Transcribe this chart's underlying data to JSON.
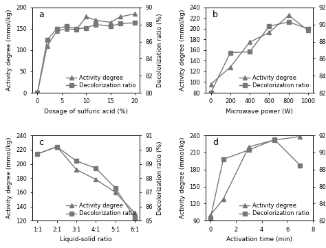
{
  "panel_a": {
    "label": "a",
    "xlabel": "Dosage of sulfuric acid (%)",
    "ylabel_left": "Activity degree (mmol/kg)",
    "ylabel_right": "Decolorization ratio (%)",
    "x": [
      0,
      2,
      4,
      6,
      8,
      10,
      12,
      15,
      17,
      20
    ],
    "activity": [
      0,
      110,
      145,
      150,
      148,
      178,
      170,
      165,
      178,
      185
    ],
    "decolor": [
      80.0,
      86.2,
      87.5,
      87.8,
      87.5,
      87.6,
      88.0,
      87.8,
      88.1,
      88.2
    ],
    "ylim_left": [
      0,
      200
    ],
    "ylim_right": [
      80,
      90
    ],
    "yticks_left": [
      0,
      50,
      100,
      150,
      200
    ],
    "yticks_right": [
      80,
      82,
      84,
      86,
      88,
      90
    ],
    "xticks": [
      0,
      5,
      10,
      15,
      20
    ],
    "xticklabels": [
      "0",
      "5",
      "10",
      "15",
      "20"
    ]
  },
  "panel_b": {
    "label": "b",
    "xlabel": "Microwave power (W)",
    "ylabel_left": "Activity degree (mmol/kg)",
    "ylabel_right": "Decolorization ratio (%)",
    "x": [
      0,
      200,
      400,
      600,
      800,
      1000
    ],
    "activity": [
      96,
      128,
      175,
      193,
      225,
      197
    ],
    "decolor": [
      82.0,
      86.7,
      86.8,
      89.8,
      90.3,
      89.5
    ],
    "ylim_left": [
      80,
      240
    ],
    "ylim_right": [
      82,
      92
    ],
    "yticks_left": [
      80,
      100,
      120,
      140,
      160,
      180,
      200,
      220,
      240
    ],
    "yticks_right": [
      82,
      84,
      86,
      88,
      90,
      92
    ],
    "xticks": [
      0,
      200,
      400,
      600,
      800,
      1000
    ],
    "xticklabels": [
      "0",
      "200",
      "400",
      "600",
      "800",
      "1000"
    ]
  },
  "panel_c": {
    "label": "c",
    "xlabel": "Liquid-solid ratio",
    "ylabel_left": "Activity degree (mmol/kg)",
    "ylabel_right": "Decolorization ratio (%)",
    "x": [
      0,
      1,
      2,
      3,
      4,
      5
    ],
    "xticklabels": [
      "1:1",
      "2:1",
      "3:1",
      "4:1",
      "5:1",
      "6:1"
    ],
    "activity": [
      214,
      224,
      192,
      178,
      160,
      131
    ],
    "decolor": [
      89.7,
      90.2,
      89.2,
      88.7,
      87.3,
      85.2
    ],
    "ylim_left": [
      120,
      240
    ],
    "ylim_right": [
      85,
      91
    ],
    "yticks_left": [
      120,
      140,
      160,
      180,
      200,
      220,
      240
    ],
    "yticks_right": [
      85,
      86,
      87,
      88,
      89,
      90,
      91
    ],
    "xticks": [
      0,
      1,
      2,
      3,
      4,
      5
    ]
  },
  "panel_d": {
    "label": "d",
    "xlabel": "Activation time (min)",
    "ylabel_left": "Activity degree (mmol/kg)",
    "ylabel_right": "Decolorization ratio (%)",
    "x": [
      0,
      1,
      3,
      5,
      7
    ],
    "activity": [
      100,
      128,
      220,
      232,
      238
    ],
    "decolor": [
      82.3,
      89.2,
      90.3,
      91.5,
      88.5
    ],
    "ylim_left": [
      90,
      240
    ],
    "ylim_right": [
      82,
      92
    ],
    "yticks_left": [
      90,
      120,
      150,
      180,
      210,
      240
    ],
    "yticks_right": [
      82,
      84,
      86,
      88,
      90,
      92
    ],
    "xticks": [
      0,
      2,
      4,
      6,
      8
    ],
    "xticklabels": [
      "0",
      "2",
      "4",
      "6",
      "8"
    ]
  },
  "line_color": "#777777",
  "marker_activity": "^",
  "marker_decolor": "s",
  "markersize": 4,
  "linewidth": 1.0,
  "legend_activity": "Activity degree",
  "legend_decolor": "Decolorization ratio",
  "fontsize_label": 6.5,
  "fontsize_tick": 6.0,
  "fontsize_legend": 6.0,
  "fontsize_panel": 9
}
